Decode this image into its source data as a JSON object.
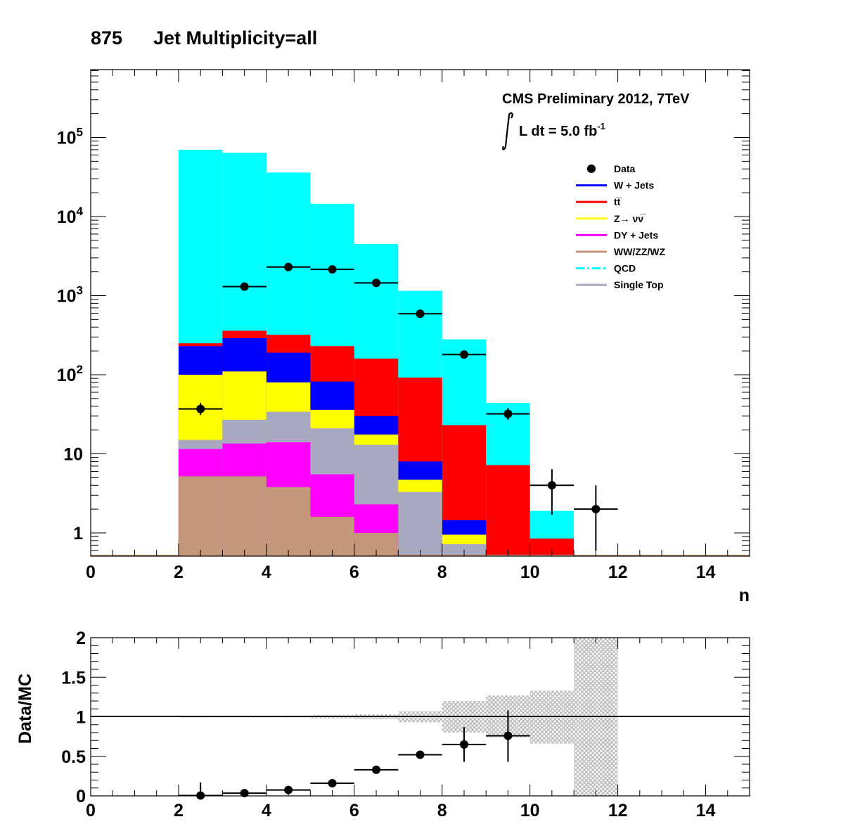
{
  "title": {
    "number": "875",
    "text": "Jet Multiplicity=all"
  },
  "cms_label": "CMS Preliminary 2012, 7TeV",
  "lumi_label": {
    "prefix": "L dt = 5.0 fb",
    "exponent": "-1"
  },
  "legend": [
    {
      "label": "Data",
      "kind": "marker",
      "color": "#000000"
    },
    {
      "label": "W + Jets",
      "kind": "line",
      "color": "#0000ff"
    },
    {
      "label": "tt̅",
      "kind": "line",
      "color": "#ff0000"
    },
    {
      "label": "Z→ νν̅",
      "kind": "line",
      "color": "#ffff00"
    },
    {
      "label": "DY + Jets",
      "kind": "line",
      "color": "#ff00ff"
    },
    {
      "label": "WW/ZZ/WZ",
      "kind": "line",
      "color": "#c4977a"
    },
    {
      "label": "QCD",
      "kind": "dashline",
      "color": "#00ffff"
    },
    {
      "label": "Single Top",
      "kind": "line",
      "color": "#a8a8c0"
    }
  ],
  "chart_data": [
    {
      "type": "bar",
      "stacked": true,
      "log_y": true,
      "xlabel": "n",
      "ylabel": "",
      "xlim": [
        0,
        15
      ],
      "ylim": [
        0.5,
        800000
      ],
      "x_ticks": [
        "0",
        "2",
        "4",
        "6",
        "8",
        "10",
        "12",
        "14"
      ],
      "y_ticks": [
        "1",
        "10",
        "10^2",
        "10^3",
        "10^4",
        "10^5"
      ],
      "bin_edges": [
        2,
        3,
        4,
        5,
        6,
        7,
        8,
        9,
        10,
        11
      ],
      "stack_cumulative": [
        {
          "name": "WW/ZZ/WZ",
          "color": "#c4977a",
          "values": [
            5.2,
            5.2,
            3.8,
            1.6,
            1.0,
            0.5,
            0.5,
            0.5,
            0.5
          ]
        },
        {
          "name": "DY + Jets",
          "color": "#ff00ff",
          "values": [
            11.5,
            13.5,
            14.0,
            5.5,
            2.3,
            0.5,
            0.5,
            0.5,
            0.5
          ]
        },
        {
          "name": "Single Top",
          "color": "#a8a8c0",
          "values": [
            15.0,
            27.0,
            34.0,
            21.0,
            13.0,
            3.3,
            0.72,
            0.5,
            0.5
          ]
        },
        {
          "name": "Z→ νν̅",
          "color": "#ffff00",
          "values": [
            100,
            110,
            80,
            36,
            17.5,
            4.7,
            0.95,
            0.5,
            0.5
          ]
        },
        {
          "name": "W + Jets",
          "color": "#0000ff",
          "values": [
            230,
            290,
            190,
            82,
            30,
            8.0,
            1.45,
            0.5,
            0.5
          ]
        },
        {
          "name": "tt̅",
          "color": "#ff0000",
          "values": [
            250,
            360,
            320,
            230,
            160,
            92,
            23,
            7.2,
            0.85
          ]
        },
        {
          "name": "QCD",
          "color": "#00ffff",
          "values": [
            70000,
            64000,
            36000,
            14500,
            4500,
            1150,
            280,
            44,
            1.9
          ]
        }
      ],
      "data_points": {
        "name": "Data",
        "x": [
          2.5,
          3.5,
          4.5,
          5.5,
          6.5,
          7.5,
          8.5,
          9.5,
          10.5,
          11.5
        ],
        "y": [
          37,
          1300,
          2300,
          2150,
          1450,
          590,
          180,
          32,
          4,
          2
        ],
        "y_low": [
          31,
          1260,
          2250,
          2100,
          1410,
          565,
          167,
          27,
          1.7,
          0.6
        ],
        "y_high": [
          44,
          1340,
          2350,
          2200,
          1490,
          615,
          193,
          38,
          6.4,
          4.0
        ]
      }
    },
    {
      "type": "scatter",
      "ylabel": "Data/MC",
      "xlim": [
        0,
        15
      ],
      "ylim": [
        0,
        2
      ],
      "x_ticks": [
        "0",
        "2",
        "4",
        "6",
        "8",
        "10",
        "12",
        "14"
      ],
      "y_ticks": [
        "0",
        "0.5",
        "1",
        "1.5",
        "2"
      ],
      "reference_line": 1,
      "uncertainty_band": {
        "bin_edges": [
          2,
          3,
          4,
          5,
          6,
          7,
          8,
          9,
          10,
          11,
          12
        ],
        "low": [
          0.99,
          0.99,
          0.99,
          0.98,
          0.97,
          0.93,
          0.8,
          0.74,
          0.66,
          0.0
        ],
        "high": [
          1.01,
          1.01,
          1.01,
          1.02,
          1.03,
          1.07,
          1.2,
          1.27,
          1.33,
          2.0
        ]
      },
      "points": {
        "x": [
          2.5,
          3.5,
          4.5,
          5.5,
          6.5,
          7.5,
          8.5,
          9.5
        ],
        "y": [
          0.005,
          0.035,
          0.075,
          0.16,
          0.33,
          0.52,
          0.65,
          0.76
        ],
        "y_low": [
          0.0,
          0.025,
          0.06,
          0.14,
          0.3,
          0.47,
          0.43,
          0.43
        ],
        "y_high": [
          0.17,
          0.045,
          0.09,
          0.18,
          0.36,
          0.57,
          0.87,
          1.08
        ]
      }
    }
  ]
}
